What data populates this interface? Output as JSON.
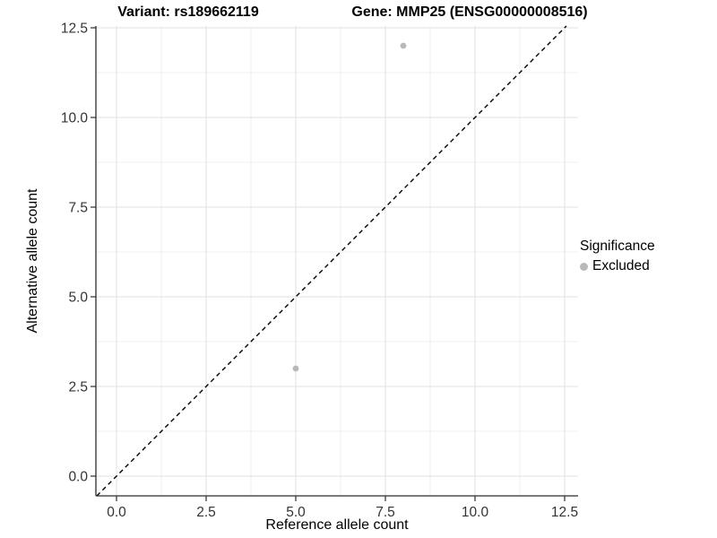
{
  "chart_data": {
    "type": "scatter",
    "title_left": "Variant: rs189662119",
    "title_right": "Gene: MMP25 (ENSG00000008516)",
    "xlabel": "Reference allele count",
    "ylabel": "Alternative allele count",
    "xlim": [
      -0.575,
      12.875
    ],
    "ylim": [
      -0.55,
      12.55
    ],
    "x_ticks": {
      "values": [
        0,
        2.5,
        5,
        7.5,
        10,
        12.5
      ],
      "labels": [
        "0.0",
        "2.5",
        "5.0",
        "7.5",
        "10.0",
        "12.5"
      ]
    },
    "y_ticks": {
      "values": [
        0,
        2.5,
        5,
        7.5,
        10,
        12.5
      ],
      "labels": [
        "0.0",
        "2.5",
        "5.0",
        "7.5",
        "10.0",
        "12.5"
      ]
    },
    "minor_ticks": [
      1.25,
      3.75,
      6.25,
      8.75,
      11.25
    ],
    "grid": {
      "show": true,
      "major_color": "#e2e2e2",
      "minor_color": "#efefef"
    },
    "series": [
      {
        "name": "Excluded",
        "color": "#b9b9b9",
        "marker": "circle",
        "points": [
          [
            8,
            12
          ],
          [
            5,
            3
          ]
        ]
      }
    ],
    "reference_line": {
      "slope": 1,
      "intercept": 0,
      "style": "dashed",
      "color": "#000000"
    },
    "legend": {
      "title": "Significance",
      "position": "right",
      "items": [
        {
          "label": "Excluded",
          "color": "#b9b9b9",
          "marker": "circle"
        }
      ]
    },
    "axis_color": "#2c2c2c",
    "tick_label_color": "#333333"
  }
}
